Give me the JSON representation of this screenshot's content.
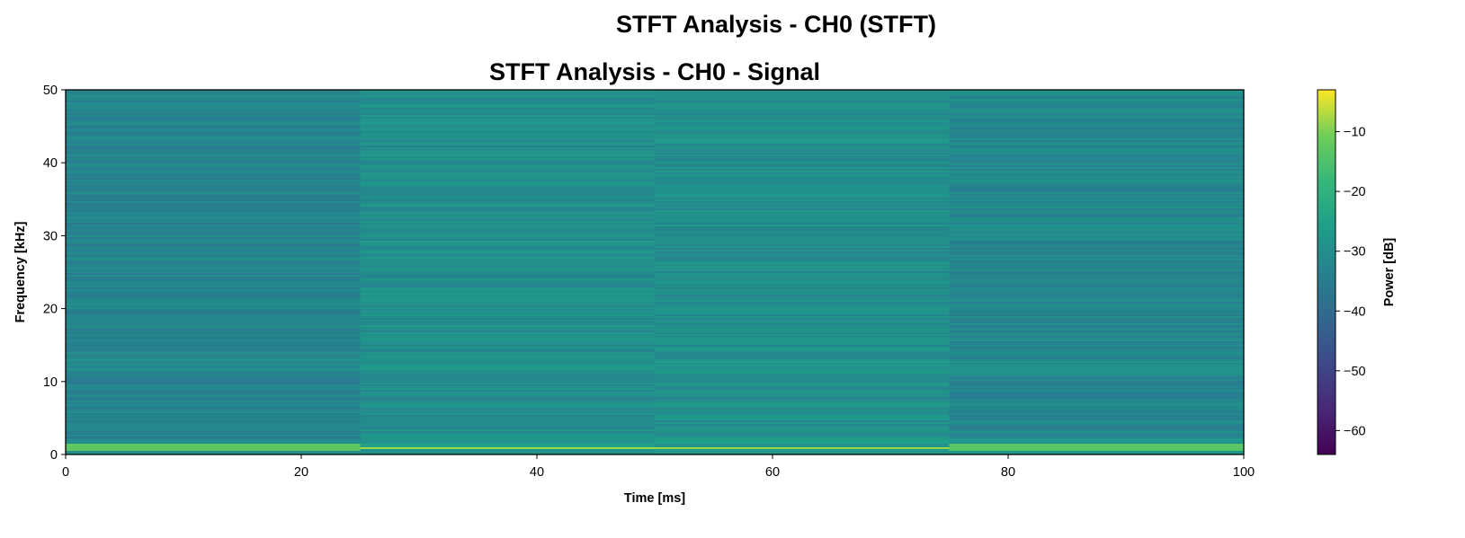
{
  "chart_data": {
    "type": "heatmap",
    "suptitle": "STFT Analysis - CH0 (STFT)",
    "title": "STFT Analysis - CH0 - Signal",
    "xlabel": "Time [ms]",
    "ylabel": "Frequency [kHz]",
    "xlim": [
      0,
      100
    ],
    "ylim": [
      0,
      50
    ],
    "xticks": [
      0,
      20,
      40,
      60,
      80,
      100
    ],
    "yticks": [
      0,
      10,
      20,
      30,
      40,
      50
    ],
    "colorbar": {
      "label": "Power [dB]",
      "range": [
        -64,
        -3
      ],
      "ticks": [
        -60,
        -50,
        -40,
        -30,
        -20,
        -10
      ],
      "colormap": "viridis"
    },
    "segments": [
      {
        "t_start": 0,
        "t_end": 25,
        "tone_band_khz": [
          0.4,
          1.6
        ],
        "tone_level_db": -13,
        "background_db": -33
      },
      {
        "t_start": 25,
        "t_end": 50,
        "tone_band_khz": [
          0.8,
          1.0
        ],
        "tone_level_db": -11,
        "background_db": -30
      },
      {
        "t_start": 50,
        "t_end": 75,
        "tone_band_khz": [
          0.8,
          1.0
        ],
        "tone_level_db": -12,
        "background_db": -30
      },
      {
        "t_start": 75,
        "t_end": 100,
        "tone_band_khz": [
          0.4,
          1.6
        ],
        "tone_level_db": -13,
        "background_db": -32
      }
    ]
  }
}
